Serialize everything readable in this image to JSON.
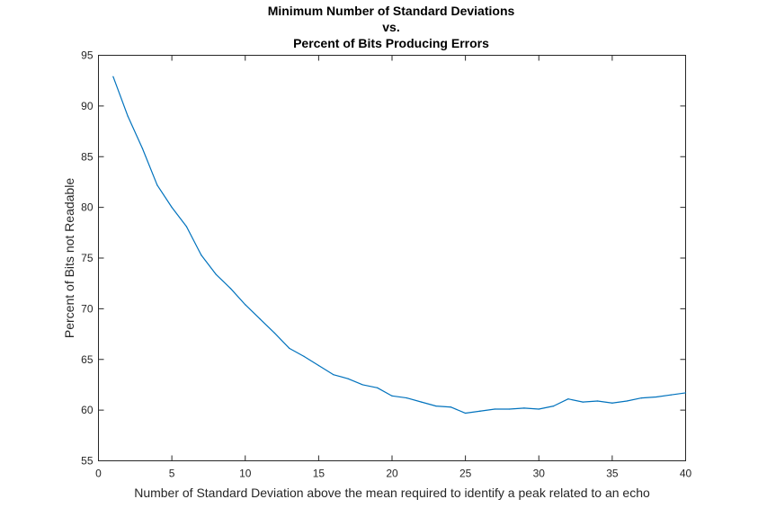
{
  "chart_data": {
    "type": "line",
    "title": [
      "Minimum Number of Standard Deviations",
      "vs.",
      "Percent of Bits Producing Errors"
    ],
    "xlabel": "Number of Standard Deviation above the mean required to identify a peak related to an echo",
    "ylabel": "Percent of Bits not Readable",
    "xlim": [
      0,
      40
    ],
    "ylim": [
      55,
      95
    ],
    "xticks": [
      0,
      5,
      10,
      15,
      20,
      25,
      30,
      35,
      40
    ],
    "yticks": [
      55,
      60,
      65,
      70,
      75,
      80,
      85,
      90,
      95
    ],
    "grid": false,
    "line_color": "#0072BD",
    "series": [
      {
        "x": [
          1,
          2,
          3,
          4,
          5,
          6,
          7,
          8,
          9,
          10,
          11,
          12,
          13,
          14,
          15,
          16,
          17,
          18,
          19,
          20,
          21,
          22,
          23,
          24,
          25,
          26,
          27,
          28,
          29,
          30,
          31,
          32,
          33,
          34,
          35,
          36,
          37,
          38,
          39,
          40
        ],
        "values": [
          92.9,
          89.0,
          85.8,
          82.2,
          80.0,
          78.1,
          75.3,
          73.4,
          72.0,
          70.4,
          69.0,
          67.6,
          66.1,
          65.3,
          64.4,
          63.5,
          63.1,
          62.5,
          62.2,
          61.4,
          61.2,
          60.8,
          60.4,
          60.3,
          59.7,
          59.9,
          60.1,
          60.1,
          60.2,
          60.1,
          60.4,
          61.1,
          60.8,
          60.9,
          60.7,
          60.9,
          61.2,
          61.3,
          61.5,
          61.7
        ]
      }
    ]
  }
}
